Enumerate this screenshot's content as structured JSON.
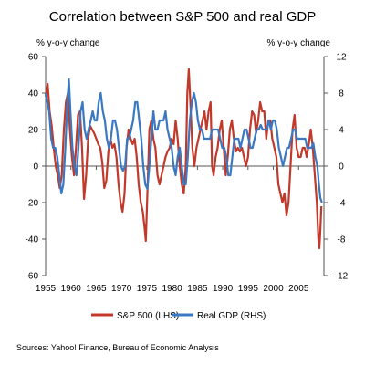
{
  "chart_data": {
    "type": "line",
    "title": "Correlation between S&P 500 and real GDP",
    "ylabel_left": "% y-o-y change",
    "ylabel_right": "% y-o-y change",
    "ylim_left": [
      -60,
      60
    ],
    "ylim_right": [
      -12,
      12
    ],
    "yticks_left": [
      "-60",
      "-40",
      "-20",
      "0",
      "20",
      "40",
      "60"
    ],
    "yticks_right": [
      "-12",
      "-8",
      "-4",
      "0",
      "4",
      "8",
      "12"
    ],
    "xlim": [
      1955,
      2010
    ],
    "xticks": [
      "1955",
      "1960",
      "1965",
      "1970",
      "1975",
      "1980",
      "1985",
      "1990",
      "1995",
      "2000",
      "2005"
    ],
    "grid": false,
    "legend": "bottom",
    "series": [
      {
        "name": "S&P 500 (LHS)",
        "axis": "left",
        "color": "#c0392b",
        "points": [
          [
            1955.0,
            38
          ],
          [
            1955.4,
            45
          ],
          [
            1955.8,
            30
          ],
          [
            1956.2,
            22
          ],
          [
            1956.6,
            10
          ],
          [
            1957.0,
            0
          ],
          [
            1957.4,
            -5
          ],
          [
            1957.8,
            -12
          ],
          [
            1958.2,
            -5
          ],
          [
            1958.6,
            20
          ],
          [
            1959.0,
            35
          ],
          [
            1959.4,
            40
          ],
          [
            1959.8,
            20
          ],
          [
            1960.2,
            5
          ],
          [
            1960.6,
            -5
          ],
          [
            1961.0,
            10
          ],
          [
            1961.4,
            28
          ],
          [
            1961.8,
            30
          ],
          [
            1962.2,
            10
          ],
          [
            1962.6,
            -18
          ],
          [
            1963.0,
            -5
          ],
          [
            1963.4,
            15
          ],
          [
            1963.8,
            22
          ],
          [
            1964.2,
            20
          ],
          [
            1964.6,
            18
          ],
          [
            1965.0,
            15
          ],
          [
            1965.4,
            12
          ],
          [
            1965.8,
            10
          ],
          [
            1966.2,
            2
          ],
          [
            1966.6,
            -12
          ],
          [
            1967.0,
            -8
          ],
          [
            1967.4,
            8
          ],
          [
            1967.8,
            15
          ],
          [
            1968.2,
            10
          ],
          [
            1968.6,
            12
          ],
          [
            1969.0,
            5
          ],
          [
            1969.4,
            -10
          ],
          [
            1969.8,
            -20
          ],
          [
            1970.2,
            -25
          ],
          [
            1970.6,
            -15
          ],
          [
            1971.0,
            10
          ],
          [
            1971.4,
            20
          ],
          [
            1971.8,
            15
          ],
          [
            1972.2,
            12
          ],
          [
            1972.6,
            15
          ],
          [
            1973.0,
            5
          ],
          [
            1973.4,
            -10
          ],
          [
            1973.8,
            -20
          ],
          [
            1974.2,
            -25
          ],
          [
            1974.6,
            -35
          ],
          [
            1974.8,
            -41
          ],
          [
            1975.1,
            -15
          ],
          [
            1975.5,
            20
          ],
          [
            1975.9,
            25
          ],
          [
            1976.3,
            15
          ],
          [
            1976.7,
            10
          ],
          [
            1977.1,
            -5
          ],
          [
            1977.5,
            -10
          ],
          [
            1977.9,
            -5
          ],
          [
            1978.3,
            0
          ],
          [
            1978.7,
            5
          ],
          [
            1979.1,
            8
          ],
          [
            1979.5,
            10
          ],
          [
            1979.9,
            15
          ],
          [
            1980.3,
            12
          ],
          [
            1980.7,
            25
          ],
          [
            1981.1,
            15
          ],
          [
            1981.5,
            0
          ],
          [
            1981.9,
            -10
          ],
          [
            1982.3,
            -15
          ],
          [
            1982.7,
            0
          ],
          [
            1983.0,
            40
          ],
          [
            1983.3,
            53
          ],
          [
            1983.6,
            35
          ],
          [
            1984.0,
            10
          ],
          [
            1984.4,
            0
          ],
          [
            1984.8,
            10
          ],
          [
            1985.2,
            15
          ],
          [
            1985.6,
            20
          ],
          [
            1986.0,
            25
          ],
          [
            1986.4,
            30
          ],
          [
            1986.8,
            20
          ],
          [
            1987.2,
            30
          ],
          [
            1987.6,
            35
          ],
          [
            1987.9,
            0
          ],
          [
            1988.2,
            -5
          ],
          [
            1988.6,
            5
          ],
          [
            1989.0,
            10
          ],
          [
            1989.4,
            20
          ],
          [
            1989.8,
            25
          ],
          [
            1990.2,
            10
          ],
          [
            1990.6,
            -5
          ],
          [
            1991.0,
            5
          ],
          [
            1991.4,
            20
          ],
          [
            1991.8,
            25
          ],
          [
            1992.2,
            15
          ],
          [
            1992.6,
            8
          ],
          [
            1993.0,
            10
          ],
          [
            1993.4,
            8
          ],
          [
            1993.8,
            10
          ],
          [
            1994.2,
            5
          ],
          [
            1994.6,
            0
          ],
          [
            1995.0,
            5
          ],
          [
            1995.4,
            20
          ],
          [
            1995.8,
            30
          ],
          [
            1996.2,
            28
          ],
          [
            1996.6,
            18
          ],
          [
            1997.0,
            25
          ],
          [
            1997.4,
            35
          ],
          [
            1997.8,
            30
          ],
          [
            1998.2,
            30
          ],
          [
            1998.6,
            15
          ],
          [
            1999.0,
            25
          ],
          [
            1999.4,
            25
          ],
          [
            1999.8,
            15
          ],
          [
            2000.2,
            10
          ],
          [
            2000.6,
            5
          ],
          [
            2001.0,
            -10
          ],
          [
            2001.4,
            -15
          ],
          [
            2001.8,
            -20
          ],
          [
            2002.2,
            -15
          ],
          [
            2002.6,
            -27
          ],
          [
            2003.0,
            -20
          ],
          [
            2003.4,
            0
          ],
          [
            2003.8,
            20
          ],
          [
            2004.2,
            28
          ],
          [
            2004.6,
            10
          ],
          [
            2005.0,
            5
          ],
          [
            2005.4,
            5
          ],
          [
            2005.8,
            10
          ],
          [
            2006.2,
            10
          ],
          [
            2006.6,
            5
          ],
          [
            2007.0,
            12
          ],
          [
            2007.4,
            20
          ],
          [
            2007.8,
            10
          ],
          [
            2008.2,
            -5
          ],
          [
            2008.6,
            -20
          ],
          [
            2008.9,
            -40
          ],
          [
            2009.1,
            -45
          ],
          [
            2009.3,
            -35
          ],
          [
            2009.5,
            -22
          ]
        ]
      },
      {
        "name": "Real GDP (RHS)",
        "axis": "right",
        "color": "#3b78c2",
        "points": [
          [
            1955.0,
            8
          ],
          [
            1955.3,
            7
          ],
          [
            1955.7,
            6
          ],
          [
            1956.1,
            3
          ],
          [
            1956.5,
            2
          ],
          [
            1956.9,
            2
          ],
          [
            1957.3,
            1
          ],
          [
            1957.7,
            -1
          ],
          [
            1958.1,
            -3
          ],
          [
            1958.5,
            -2
          ],
          [
            1958.9,
            2
          ],
          [
            1959.3,
            7
          ],
          [
            1959.6,
            9.5
          ],
          [
            1959.9,
            6
          ],
          [
            1960.3,
            2
          ],
          [
            1960.7,
            0
          ],
          [
            1961.1,
            -1
          ],
          [
            1961.5,
            2
          ],
          [
            1961.9,
            6
          ],
          [
            1962.3,
            7
          ],
          [
            1962.7,
            4
          ],
          [
            1963.1,
            3
          ],
          [
            1963.5,
            4
          ],
          [
            1963.9,
            5
          ],
          [
            1964.3,
            6
          ],
          [
            1964.7,
            5
          ],
          [
            1965.1,
            5
          ],
          [
            1965.5,
            7
          ],
          [
            1965.9,
            8
          ],
          [
            1966.3,
            6
          ],
          [
            1966.7,
            5
          ],
          [
            1967.1,
            3
          ],
          [
            1967.5,
            2
          ],
          [
            1967.9,
            3
          ],
          [
            1968.3,
            5
          ],
          [
            1968.7,
            5
          ],
          [
            1969.1,
            4
          ],
          [
            1969.5,
            2
          ],
          [
            1969.9,
            0
          ],
          [
            1970.3,
            -0.5
          ],
          [
            1970.7,
            0
          ],
          [
            1971.1,
            3
          ],
          [
            1971.5,
            3
          ],
          [
            1971.9,
            4
          ],
          [
            1972.3,
            5
          ],
          [
            1972.7,
            7
          ],
          [
            1973.1,
            7
          ],
          [
            1973.5,
            5
          ],
          [
            1973.9,
            3
          ],
          [
            1974.3,
            0
          ],
          [
            1974.7,
            -2
          ],
          [
            1975.1,
            -2.5
          ],
          [
            1975.5,
            0
          ],
          [
            1975.9,
            3
          ],
          [
            1976.3,
            6
          ],
          [
            1976.7,
            4
          ],
          [
            1977.1,
            4
          ],
          [
            1977.5,
            5
          ],
          [
            1977.9,
            5
          ],
          [
            1978.3,
            5
          ],
          [
            1978.7,
            6
          ],
          [
            1979.1,
            4
          ],
          [
            1979.5,
            3
          ],
          [
            1979.9,
            2
          ],
          [
            1980.3,
            0
          ],
          [
            1980.7,
            -1
          ],
          [
            1981.1,
            1
          ],
          [
            1981.5,
            2
          ],
          [
            1981.9,
            0
          ],
          [
            1982.3,
            -2
          ],
          [
            1982.7,
            -2
          ],
          [
            1983.1,
            1
          ],
          [
            1983.5,
            5
          ],
          [
            1983.9,
            7
          ],
          [
            1984.3,
            8
          ],
          [
            1984.7,
            7
          ],
          [
            1985.1,
            5
          ],
          [
            1985.5,
            4
          ],
          [
            1985.9,
            4
          ],
          [
            1986.3,
            3
          ],
          [
            1986.7,
            3
          ],
          [
            1987.1,
            3
          ],
          [
            1987.5,
            3
          ],
          [
            1987.9,
            4
          ],
          [
            1988.3,
            4
          ],
          [
            1988.7,
            4
          ],
          [
            1989.1,
            4
          ],
          [
            1989.5,
            3
          ],
          [
            1989.9,
            2
          ],
          [
            1990.3,
            2
          ],
          [
            1990.7,
            1
          ],
          [
            1991.1,
            -1
          ],
          [
            1991.5,
            -1
          ],
          [
            1991.9,
            1
          ],
          [
            1992.3,
            3
          ],
          [
            1992.7,
            3
          ],
          [
            1993.1,
            3
          ],
          [
            1993.5,
            2
          ],
          [
            1993.9,
            3
          ],
          [
            1994.3,
            4
          ],
          [
            1994.7,
            4
          ],
          [
            1995.1,
            3
          ],
          [
            1995.5,
            2
          ],
          [
            1995.9,
            2
          ],
          [
            1996.3,
            3
          ],
          [
            1996.7,
            4
          ],
          [
            1997.1,
            4
          ],
          [
            1997.5,
            4.5
          ],
          [
            1997.9,
            4
          ],
          [
            1998.3,
            4
          ],
          [
            1998.7,
            4
          ],
          [
            1999.1,
            5
          ],
          [
            1999.5,
            4
          ],
          [
            1999.9,
            5
          ],
          [
            2000.3,
            5
          ],
          [
            2000.7,
            4
          ],
          [
            2001.1,
            2
          ],
          [
            2001.5,
            1
          ],
          [
            2001.9,
            0
          ],
          [
            2002.3,
            1
          ],
          [
            2002.7,
            2
          ],
          [
            2003.1,
            2
          ],
          [
            2003.5,
            3
          ],
          [
            2003.9,
            4
          ],
          [
            2004.3,
            4
          ],
          [
            2004.7,
            3
          ],
          [
            2005.1,
            3
          ],
          [
            2005.5,
            3
          ],
          [
            2005.9,
            3
          ],
          [
            2006.3,
            3
          ],
          [
            2006.7,
            2
          ],
          [
            2007.1,
            2
          ],
          [
            2007.5,
            2
          ],
          [
            2007.9,
            2.5
          ],
          [
            2008.3,
            1
          ],
          [
            2008.7,
            0
          ],
          [
            2009.0,
            -2
          ],
          [
            2009.3,
            -3.5
          ],
          [
            2009.6,
            -4
          ]
        ]
      }
    ]
  },
  "source_text": "Sources: Yahoo! Finance, Bureau of Economic Analysis"
}
